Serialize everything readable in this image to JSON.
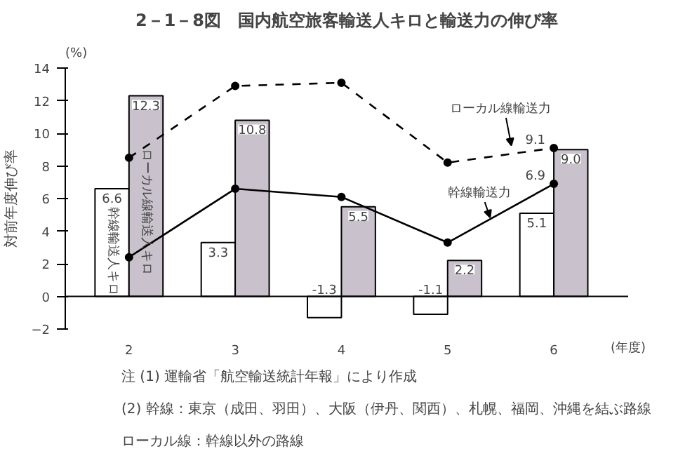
{
  "chart_data": {
    "type": "bar",
    "title": "2－1－8図　国内航空旅客輸送人キロと輸送力の伸び率",
    "xlabel": "(年度)",
    "ylabel": "対前年度伸び率",
    "categories": [
      "2",
      "3",
      "4",
      "5",
      "6"
    ],
    "series": [
      {
        "name": "幹線輸送人キロ",
        "color": "#ffffff",
        "values": [
          6.6,
          3.3,
          -1.3,
          -1.1,
          5.1
        ],
        "value_labels": [
          "6.6",
          "3.3",
          "-1.3",
          "-1.1",
          "5.1"
        ]
      },
      {
        "name": "ローカル線輸送人キロ",
        "color": "#c9c2cc",
        "values": [
          12.3,
          10.8,
          5.5,
          2.2,
          9.0
        ],
        "value_labels": [
          "12.3",
          "10.8",
          "5.5",
          "2.2",
          "9.0"
        ]
      },
      {
        "name": "幹線輸送力",
        "type": "line",
        "color": "#000000",
        "line_style": "solid",
        "marker": "circle",
        "values": [
          2.4,
          6.6,
          6.1,
          3.3,
          6.9
        ],
        "value_labels": [
          null,
          null,
          null,
          null,
          "6.9"
        ]
      },
      {
        "name": "ローカル線輸送力",
        "type": "line",
        "color": "#000000",
        "line_style": "dashed",
        "marker": "circle",
        "values": [
          8.5,
          12.9,
          13.1,
          8.2,
          9.1
        ],
        "value_labels": [
          null,
          null,
          null,
          null,
          "9.1"
        ]
      }
    ],
    "ylim": [
      -2,
      14
    ],
    "yticks": [
      -2,
      0,
      2,
      4,
      6,
      8,
      10,
      12,
      14
    ],
    "grid": false,
    "legend": false,
    "ref_lines": [
      {
        "axis": "y",
        "value": 0,
        "color": "#000000"
      }
    ],
    "annotations": [
      "(%)",
      "注 (1) 運輸省「航空輸送統計年報」により作成",
      "(2) 幹線：東京（成田、羽田）、大阪（伊丹、関西）、札幌、福岡、沖縄を結ぶ路線ローカル線：幹線以外の路線"
    ]
  }
}
